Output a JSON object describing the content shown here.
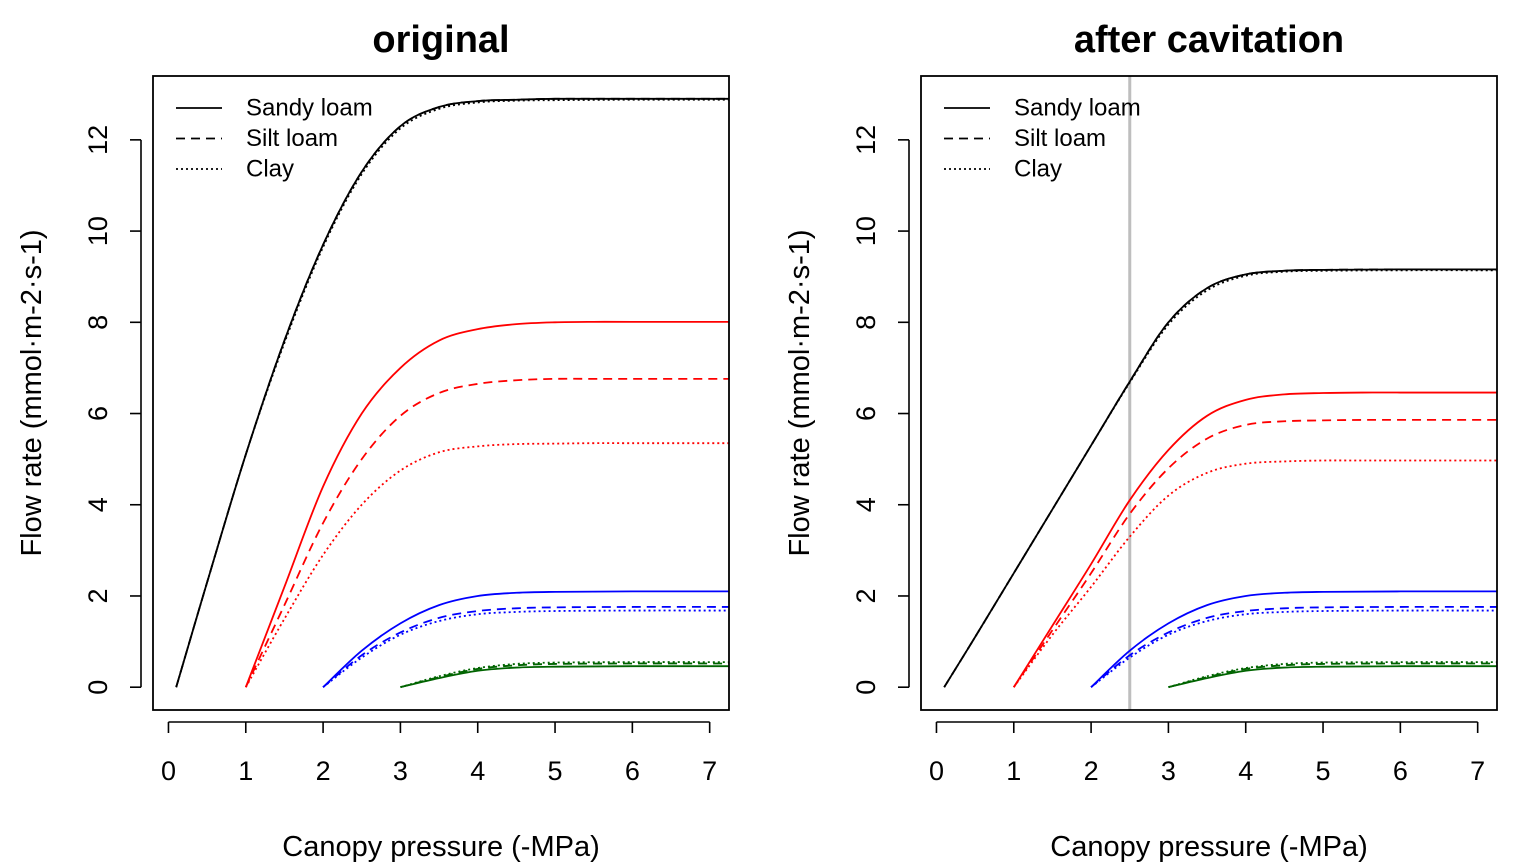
{
  "chart_data": [
    {
      "type": "line",
      "title": "original",
      "xlabel": "Canopy pressure (-MPa)",
      "ylabel": "Flow rate (mmol·m-2·s-1)",
      "xlim": [
        -0.2,
        7.25
      ],
      "ylim": [
        -0.5,
        13.4
      ],
      "xticks": [
        "0",
        "1",
        "2",
        "3",
        "4",
        "5",
        "6",
        "7"
      ],
      "yticks": [
        "0",
        "2",
        "4",
        "6",
        "8",
        "10",
        "12"
      ],
      "grid": false,
      "legend": {
        "position": "top-left",
        "entries": [
          {
            "label": "Sandy loam",
            "linestyle": "solid"
          },
          {
            "label": "Silt loam",
            "linestyle": "dashed"
          },
          {
            "label": "Clay",
            "linestyle": "dotted"
          }
        ]
      },
      "vline": null,
      "series": [
        {
          "color": "#000000",
          "linestyle": "solid",
          "start": 0.1,
          "x": [
            0.1,
            0.5,
            1.0,
            1.5,
            2.0,
            2.5,
            3.0,
            3.5,
            4.0,
            4.5,
            5.0,
            6.0,
            7.25
          ],
          "y": [
            0,
            2.3,
            5.1,
            7.6,
            9.7,
            11.3,
            12.3,
            12.72,
            12.85,
            12.88,
            12.9,
            12.9,
            12.9
          ]
        },
        {
          "color": "#000000",
          "linestyle": "dashed",
          "start": 0.1,
          "x": [
            0.1,
            0.5,
            1.0,
            1.5,
            2.0,
            2.5,
            3.0,
            3.5,
            4.0,
            4.5,
            5.0,
            6.0,
            7.25
          ],
          "y": [
            0,
            2.3,
            5.1,
            7.6,
            9.7,
            11.3,
            12.3,
            12.72,
            12.85,
            12.88,
            12.9,
            12.9,
            12.9
          ]
        },
        {
          "color": "#000000",
          "linestyle": "dotted",
          "start": 0.1,
          "x": [
            0.1,
            0.5,
            1.0,
            1.5,
            2.0,
            2.5,
            3.0,
            3.5,
            4.0,
            4.5,
            5.0,
            6.0,
            7.25
          ],
          "y": [
            0,
            2.3,
            5.1,
            7.55,
            9.65,
            11.25,
            12.25,
            12.68,
            12.82,
            12.86,
            12.87,
            12.88,
            12.88
          ]
        },
        {
          "color": "#ff0000",
          "linestyle": "solid",
          "start": 1.0,
          "x": [
            1.0,
            1.5,
            2.0,
            2.5,
            3.0,
            3.5,
            4.0,
            4.5,
            5.0,
            5.5,
            6.0,
            7.25
          ],
          "y": [
            0,
            2.2,
            4.4,
            6.0,
            7.0,
            7.6,
            7.85,
            7.96,
            8.0,
            8.01,
            8.01,
            8.01
          ]
        },
        {
          "color": "#ff0000",
          "linestyle": "dashed",
          "start": 1.0,
          "x": [
            1.0,
            1.5,
            2.0,
            2.5,
            3.0,
            3.5,
            4.0,
            4.5,
            5.0,
            5.5,
            6.0,
            7.25
          ],
          "y": [
            0,
            1.8,
            3.6,
            5.0,
            5.95,
            6.45,
            6.65,
            6.73,
            6.76,
            6.76,
            6.76,
            6.76
          ]
        },
        {
          "color": "#ff0000",
          "linestyle": "dotted",
          "start": 1.0,
          "x": [
            1.0,
            1.5,
            2.0,
            2.5,
            3.0,
            3.5,
            4.0,
            4.5,
            5.0,
            5.5,
            6.0,
            7.25
          ],
          "y": [
            0,
            1.5,
            2.9,
            4.0,
            4.75,
            5.15,
            5.28,
            5.33,
            5.34,
            5.35,
            5.35,
            5.35
          ]
        },
        {
          "color": "#0000ff",
          "linestyle": "solid",
          "start": 2.0,
          "x": [
            2.0,
            2.5,
            3.0,
            3.5,
            4.0,
            4.5,
            5.0,
            6.0,
            7.25
          ],
          "y": [
            0,
            0.8,
            1.4,
            1.8,
            2.0,
            2.07,
            2.09,
            2.1,
            2.1
          ]
        },
        {
          "color": "#0000ff",
          "linestyle": "dashed",
          "start": 2.0,
          "x": [
            2.0,
            2.5,
            3.0,
            3.5,
            4.0,
            4.5,
            5.0,
            6.0,
            7.25
          ],
          "y": [
            0,
            0.7,
            1.2,
            1.52,
            1.67,
            1.73,
            1.75,
            1.76,
            1.76
          ]
        },
        {
          "color": "#0000ff",
          "linestyle": "dotted",
          "start": 2.0,
          "x": [
            2.0,
            2.5,
            3.0,
            3.5,
            4.0,
            4.5,
            5.0,
            6.0,
            7.25
          ],
          "y": [
            0,
            0.65,
            1.15,
            1.45,
            1.6,
            1.65,
            1.67,
            1.68,
            1.68
          ]
        },
        {
          "color": "#006400",
          "linestyle": "solid",
          "start": 3.0,
          "x": [
            3.0,
            3.5,
            4.0,
            4.5,
            5.0,
            6.0,
            7.25
          ],
          "y": [
            0,
            0.2,
            0.36,
            0.43,
            0.45,
            0.46,
            0.46
          ]
        },
        {
          "color": "#006400",
          "linestyle": "dashed",
          "start": 3.0,
          "x": [
            3.0,
            3.5,
            4.0,
            4.5,
            5.0,
            6.0,
            7.25
          ],
          "y": [
            0,
            0.22,
            0.4,
            0.48,
            0.51,
            0.52,
            0.52
          ]
        },
        {
          "color": "#006400",
          "linestyle": "dotted",
          "start": 3.0,
          "x": [
            3.0,
            3.5,
            4.0,
            4.5,
            5.0,
            6.0,
            7.25
          ],
          "y": [
            0,
            0.24,
            0.42,
            0.51,
            0.54,
            0.55,
            0.55
          ]
        }
      ]
    },
    {
      "type": "line",
      "title": "after cavitation",
      "xlabel": "Canopy pressure (-MPa)",
      "ylabel": "Flow rate (mmol·m-2·s-1)",
      "xlim": [
        -0.2,
        7.25
      ],
      "ylim": [
        -0.5,
        13.4
      ],
      "xticks": [
        "0",
        "1",
        "2",
        "3",
        "4",
        "5",
        "6",
        "7"
      ],
      "yticks": [
        "0",
        "2",
        "4",
        "6",
        "8",
        "10",
        "12"
      ],
      "grid": false,
      "legend": {
        "position": "top-left",
        "entries": [
          {
            "label": "Sandy loam",
            "linestyle": "solid"
          },
          {
            "label": "Silt loam",
            "linestyle": "dashed"
          },
          {
            "label": "Clay",
            "linestyle": "dotted"
          }
        ]
      },
      "vline": {
        "x": 2.5,
        "color": "#bebebe"
      },
      "series": [
        {
          "color": "#000000",
          "linestyle": "solid",
          "start": 0.1,
          "x": [
            0.1,
            0.5,
            1.0,
            1.5,
            2.0,
            2.5,
            3.0,
            3.5,
            4.0,
            4.5,
            5.0,
            6.0,
            7.25
          ],
          "y": [
            0,
            1.1,
            2.5,
            3.9,
            5.3,
            6.7,
            8.0,
            8.75,
            9.05,
            9.13,
            9.15,
            9.16,
            9.16
          ]
        },
        {
          "color": "#000000",
          "linestyle": "dashed",
          "start": 0.1,
          "x": [
            0.1,
            0.5,
            1.0,
            1.5,
            2.0,
            2.5,
            3.0,
            3.5,
            4.0,
            4.5,
            5.0,
            6.0,
            7.25
          ],
          "y": [
            0,
            1.1,
            2.5,
            3.9,
            5.3,
            6.7,
            8.0,
            8.75,
            9.05,
            9.13,
            9.15,
            9.16,
            9.16
          ]
        },
        {
          "color": "#000000",
          "linestyle": "dotted",
          "start": 0.1,
          "x": [
            0.1,
            0.5,
            1.0,
            1.5,
            2.0,
            2.5,
            3.0,
            3.5,
            4.0,
            4.5,
            5.0,
            6.0,
            7.25
          ],
          "y": [
            0,
            1.1,
            2.5,
            3.9,
            5.3,
            6.68,
            7.95,
            8.7,
            9.02,
            9.11,
            9.13,
            9.14,
            9.14
          ]
        },
        {
          "color": "#ff0000",
          "linestyle": "solid",
          "start": 1.0,
          "x": [
            1.0,
            1.5,
            2.0,
            2.5,
            3.0,
            3.5,
            4.0,
            4.5,
            5.0,
            5.5,
            6.0,
            7.25
          ],
          "y": [
            0,
            1.35,
            2.7,
            4.1,
            5.2,
            5.95,
            6.3,
            6.42,
            6.45,
            6.46,
            6.46,
            6.46
          ]
        },
        {
          "color": "#ff0000",
          "linestyle": "dashed",
          "start": 1.0,
          "x": [
            1.0,
            1.5,
            2.0,
            2.5,
            3.0,
            3.5,
            4.0,
            4.5,
            5.0,
            5.5,
            6.0,
            7.25
          ],
          "y": [
            0,
            1.25,
            2.5,
            3.8,
            4.8,
            5.45,
            5.75,
            5.83,
            5.85,
            5.86,
            5.86,
            5.86
          ]
        },
        {
          "color": "#ff0000",
          "linestyle": "dotted",
          "start": 1.0,
          "x": [
            1.0,
            1.5,
            2.0,
            2.5,
            3.0,
            3.5,
            4.0,
            4.5,
            5.0,
            5.5,
            6.0,
            7.25
          ],
          "y": [
            0,
            1.15,
            2.2,
            3.3,
            4.2,
            4.7,
            4.9,
            4.95,
            4.97,
            4.97,
            4.97,
            4.97
          ]
        },
        {
          "color": "#0000ff",
          "linestyle": "solid",
          "start": 2.0,
          "x": [
            2.0,
            2.5,
            3.0,
            3.5,
            4.0,
            4.5,
            5.0,
            6.0,
            7.25
          ],
          "y": [
            0,
            0.8,
            1.4,
            1.8,
            2.0,
            2.07,
            2.09,
            2.1,
            2.1
          ]
        },
        {
          "color": "#0000ff",
          "linestyle": "dashed",
          "start": 2.0,
          "x": [
            2.0,
            2.5,
            3.0,
            3.5,
            4.0,
            4.5,
            5.0,
            6.0,
            7.25
          ],
          "y": [
            0,
            0.7,
            1.2,
            1.52,
            1.67,
            1.73,
            1.75,
            1.76,
            1.76
          ]
        },
        {
          "color": "#0000ff",
          "linestyle": "dotted",
          "start": 2.0,
          "x": [
            2.0,
            2.5,
            3.0,
            3.5,
            4.0,
            4.5,
            5.0,
            6.0,
            7.25
          ],
          "y": [
            0,
            0.65,
            1.15,
            1.45,
            1.6,
            1.65,
            1.67,
            1.68,
            1.68
          ]
        },
        {
          "color": "#006400",
          "linestyle": "solid",
          "start": 3.0,
          "x": [
            3.0,
            3.5,
            4.0,
            4.5,
            5.0,
            6.0,
            7.25
          ],
          "y": [
            0,
            0.2,
            0.36,
            0.43,
            0.45,
            0.46,
            0.46
          ]
        },
        {
          "color": "#006400",
          "linestyle": "dashed",
          "start": 3.0,
          "x": [
            3.0,
            3.5,
            4.0,
            4.5,
            5.0,
            6.0,
            7.25
          ],
          "y": [
            0,
            0.22,
            0.4,
            0.48,
            0.51,
            0.52,
            0.52
          ]
        },
        {
          "color": "#006400",
          "linestyle": "dotted",
          "start": 3.0,
          "x": [
            3.0,
            3.5,
            4.0,
            4.5,
            5.0,
            6.0,
            7.25
          ],
          "y": [
            0,
            0.24,
            0.42,
            0.51,
            0.54,
            0.55,
            0.55
          ]
        }
      ]
    }
  ]
}
